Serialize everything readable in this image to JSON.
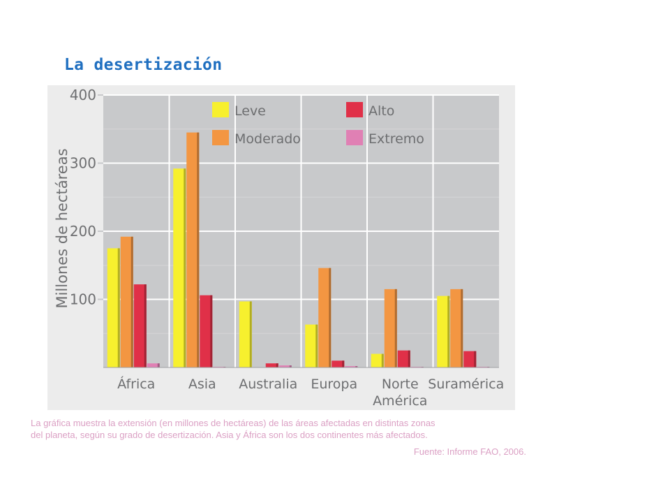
{
  "title": "La desertización",
  "chart_data": {
    "type": "bar",
    "ylabel": "Millones de hectáreas",
    "ylim": [
      0,
      400
    ],
    "yticks": [
      "100",
      "200",
      "300",
      "400"
    ],
    "ytick_values": [
      100,
      200,
      300,
      400
    ],
    "categories": [
      {
        "label": "África",
        "lines": [
          "África"
        ]
      },
      {
        "label": "Asia",
        "lines": [
          "Asia"
        ]
      },
      {
        "label": "Australia",
        "lines": [
          "Australia"
        ]
      },
      {
        "label": "Europa",
        "lines": [
          "Europa"
        ]
      },
      {
        "label": "Norte América",
        "lines": [
          "Norte",
          "América"
        ]
      },
      {
        "label": "Suramérica",
        "lines": [
          "Suramérica"
        ]
      }
    ],
    "series": [
      {
        "name": "Leve",
        "color": "#f7f02e",
        "values": [
          175,
          292,
          97,
          63,
          20,
          105
        ]
      },
      {
        "name": "Moderado",
        "color": "#f39642",
        "values": [
          192,
          345,
          0,
          146,
          115,
          115
        ]
      },
      {
        "name": "Alto",
        "color": "#e03048",
        "values": [
          122,
          106,
          6,
          10,
          25,
          24
        ]
      },
      {
        "name": "Extremo",
        "color": "#e080b4",
        "values": [
          6,
          1,
          3,
          2,
          1,
          1
        ]
      }
    ],
    "legend": "top-right",
    "grid": true
  },
  "caption": {
    "line1": "La gráfica muestra la extensión (en millones de hectáreas) de las áreas afectadas en distintas zonas",
    "line2": "del planeta, según su grado de desertización. Asia y África son los dos continentes más afectados.",
    "source": "Fuente: Informe FAO, 2006."
  }
}
